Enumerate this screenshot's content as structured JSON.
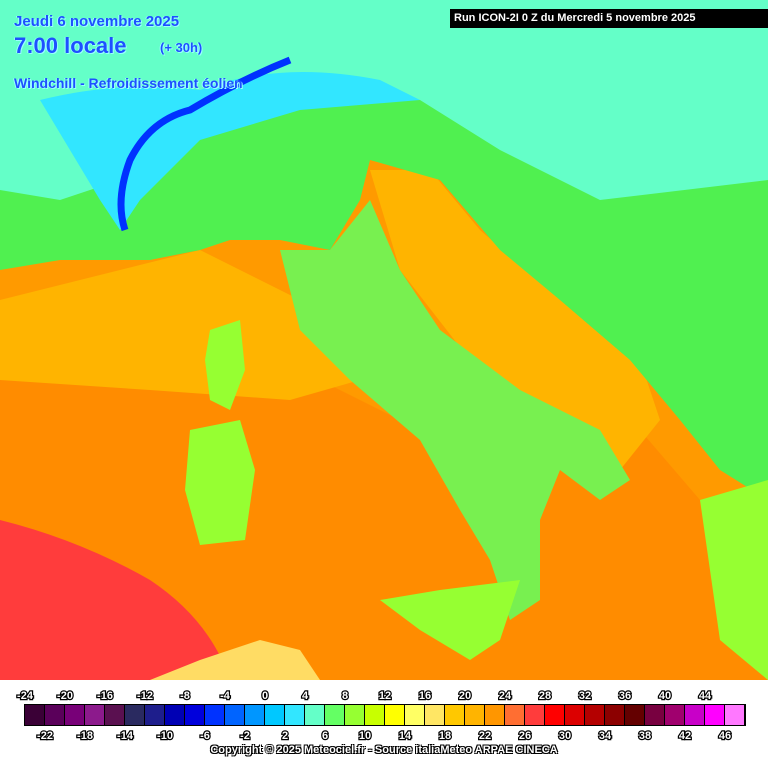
{
  "header": {
    "date": "Jeudi 6 novembre 2025",
    "time": "7:00 locale",
    "offset": "(+ 30h)",
    "parameter": "Windchill - Refroidissement éolien",
    "run": "Run ICON-2I 0 Z du Mercredi 5 novembre 2025"
  },
  "footer": {
    "copyright": "Copyright © 2025 Meteociel.fr - Source italiaMeteo ARPAE CINECA"
  },
  "legend": {
    "bins": [
      {
        "value": -24,
        "color": "#3a0036"
      },
      {
        "value": -22,
        "color": "#5a005a"
      },
      {
        "value": -20,
        "color": "#780078"
      },
      {
        "value": -18,
        "color": "#8c1a8c"
      },
      {
        "value": -16,
        "color": "#5a1050"
      },
      {
        "value": -14,
        "color": "#2a2a60"
      },
      {
        "value": -12,
        "color": "#1e1e8c"
      },
      {
        "value": -10,
        "color": "#0000b4"
      },
      {
        "value": -8,
        "color": "#0000dc"
      },
      {
        "value": -6,
        "color": "#0032ff"
      },
      {
        "value": -4,
        "color": "#0064ff"
      },
      {
        "value": -2,
        "color": "#0096ff"
      },
      {
        "value": 0,
        "color": "#00c8ff"
      },
      {
        "value": 2,
        "color": "#32e6ff"
      },
      {
        "value": 4,
        "color": "#64ffc8"
      },
      {
        "value": 6,
        "color": "#64ff64"
      },
      {
        "value": 8,
        "color": "#96ff32"
      },
      {
        "value": 10,
        "color": "#c8ff00"
      },
      {
        "value": 12,
        "color": "#ffff00"
      },
      {
        "value": 14,
        "color": "#ffff64"
      },
      {
        "value": 16,
        "color": "#ffe664"
      },
      {
        "value": 18,
        "color": "#ffc800"
      },
      {
        "value": 20,
        "color": "#ffb400"
      },
      {
        "value": 22,
        "color": "#ff9600"
      },
      {
        "value": 24,
        "color": "#ff6e32"
      },
      {
        "value": 26,
        "color": "#ff3c3c"
      },
      {
        "value": 28,
        "color": "#ff0000"
      },
      {
        "value": 30,
        "color": "#dc0000"
      },
      {
        "value": 32,
        "color": "#b40000"
      },
      {
        "value": 34,
        "color": "#8c0000"
      },
      {
        "value": 36,
        "color": "#640000"
      },
      {
        "value": 38,
        "color": "#780040"
      },
      {
        "value": 40,
        "color": "#a0006e"
      },
      {
        "value": 42,
        "color": "#c800c8"
      },
      {
        "value": 44,
        "color": "#ff00ff"
      },
      {
        "value": 46,
        "color": "#ff78ff"
      }
    ]
  }
}
